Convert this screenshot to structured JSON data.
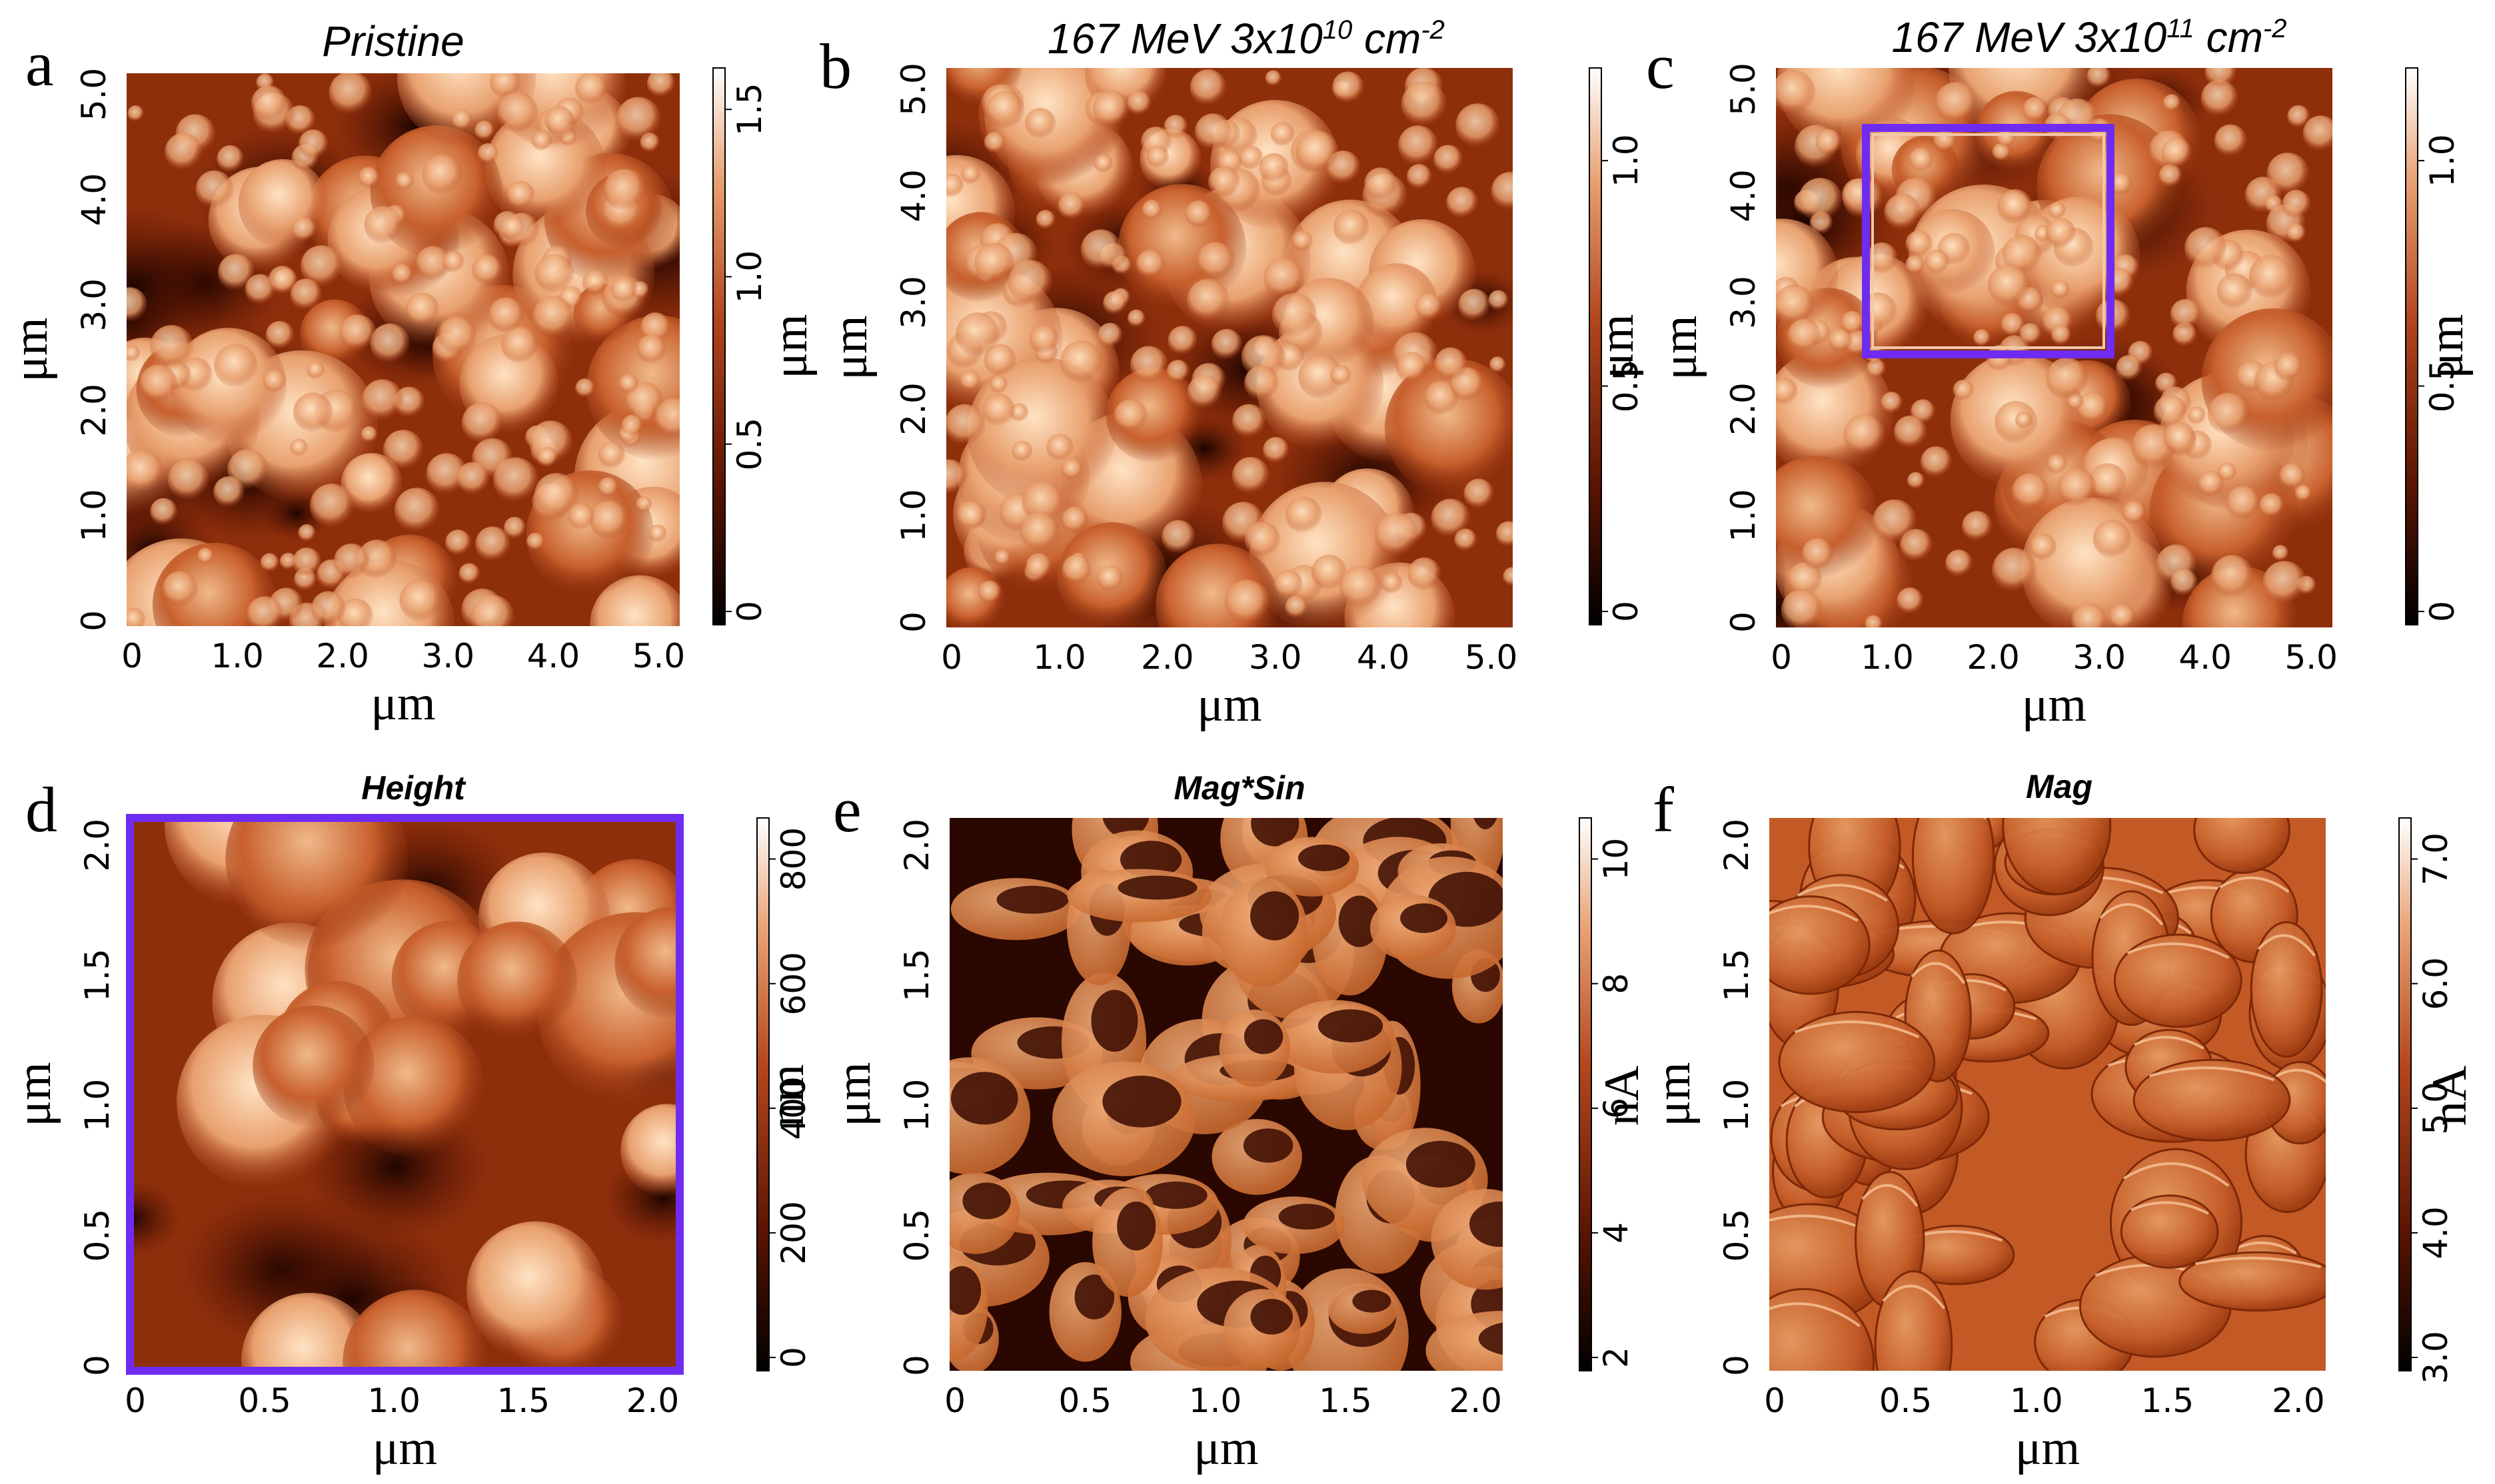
{
  "panels": [
    {
      "letter": "a",
      "title": "Pristine",
      "title_sup": "",
      "title_tail": "",
      "image": "afm-height",
      "x_ticks": [
        "0",
        "1.0",
        "2.0",
        "3.0",
        "4.0",
        "5.0"
      ],
      "y_ticks": [
        "0",
        "1.0",
        "2.0",
        "3.0",
        "4.0",
        "5.0"
      ],
      "x_label": "μm",
      "y_label": "μm",
      "colorbar_ticks": [
        "0",
        "0.5",
        "1.0",
        "1.5"
      ],
      "colorbar_label": "μm"
    },
    {
      "letter": "b",
      "title": "167 MeV 3x10",
      "title_sup": "10",
      "title_tail": " cm",
      "title_sup2": "-2",
      "image": "afm-height",
      "x_ticks": [
        "0",
        "1.0",
        "2.0",
        "3.0",
        "4.0",
        "5.0"
      ],
      "y_ticks": [
        "0",
        "1.0",
        "2.0",
        "3.0",
        "4.0",
        "5.0"
      ],
      "x_label": "μm",
      "y_label": "μm",
      "colorbar_ticks": [
        "0",
        "0.5",
        "1.0"
      ],
      "colorbar_label": "μm"
    },
    {
      "letter": "c",
      "title": "167 MeV 3x10",
      "title_sup": "11",
      "title_tail": " cm",
      "title_sup2": "-2",
      "image": "afm-height",
      "x_ticks": [
        "0",
        "1.0",
        "2.0",
        "3.0",
        "4.0",
        "5.0"
      ],
      "y_ticks": [
        "0",
        "1.0",
        "2.0",
        "3.0",
        "4.0",
        "5.0"
      ],
      "x_label": "μm",
      "y_label": "μm",
      "colorbar_ticks": [
        "0",
        "0.5",
        "1.0"
      ],
      "colorbar_label": "μm",
      "highlight_box_color": "#6f2cf0"
    },
    {
      "letter": "d",
      "title": "Height",
      "image": "afm-height-zoom",
      "x_ticks": [
        "0",
        "0.5",
        "1.0",
        "1.5",
        "2.0"
      ],
      "y_ticks": [
        "0",
        "0.5",
        "1.0",
        "1.5",
        "2.0"
      ],
      "x_label": "μm",
      "y_label": "μm",
      "colorbar_ticks": [
        "0",
        "200",
        "400",
        "600",
        "800"
      ],
      "colorbar_label": "nm",
      "frame_color": "#6f2cf0"
    },
    {
      "letter": "e",
      "title": "Mag*Sin",
      "image": "afm-current-magsin",
      "x_ticks": [
        "0",
        "0.5",
        "1.0",
        "1.5",
        "2.0"
      ],
      "y_ticks": [
        "0",
        "0.5",
        "1.0",
        "1.5",
        "2.0"
      ],
      "x_label": "μm",
      "y_label": "μm",
      "colorbar_ticks": [
        "2",
        "4",
        "6",
        "8",
        "10"
      ],
      "colorbar_label": "nA"
    },
    {
      "letter": "f",
      "title": "Mag",
      "image": "afm-current-mag",
      "x_ticks": [
        "0",
        "0.5",
        "1.0",
        "1.5",
        "2.0"
      ],
      "y_ticks": [
        "0",
        "0.5",
        "1.0",
        "1.5",
        "2.0"
      ],
      "x_label": "μm",
      "y_label": "μm",
      "colorbar_ticks": [
        "3.0",
        "4.0",
        "5.0",
        "6.0",
        "7.0"
      ],
      "colorbar_label": "nA"
    }
  ],
  "colors": {
    "afm_dark": "#1a0500",
    "afm_mid": "#b3461d",
    "afm_light": "#f2c195",
    "afm_white": "#fff4e6",
    "highlight": "#6f2cf0"
  }
}
